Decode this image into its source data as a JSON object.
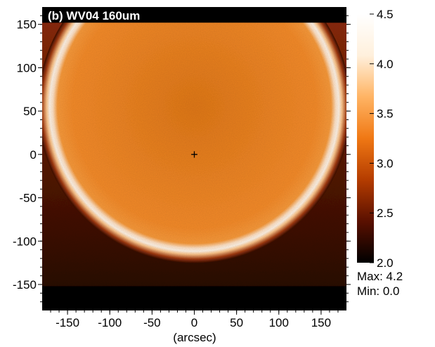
{
  "chart_data": {
    "type": "heatmap",
    "title": "(b) WV04 160um",
    "xlabel": "(arcsec)",
    "ylabel": "",
    "xlim": [
      -180,
      180
    ],
    "ylim": [
      -180,
      170
    ],
    "x_ticks": [
      -150,
      -100,
      -50,
      0,
      50,
      100,
      150
    ],
    "y_ticks": [
      150,
      100,
      50,
      0,
      -50,
      -100,
      -150
    ],
    "colorbar": {
      "range": [
        2.0,
        4.5
      ],
      "ticks": [
        "4.5",
        "4.0",
        "3.5",
        "3.0",
        "2.5",
        "2.0"
      ],
      "colormap": [
        "#000000",
        "#5a1000",
        "#b43c00",
        "#f07814",
        "#ffb464",
        "#fff0dc",
        "#ffffff"
      ]
    },
    "stats": {
      "max": "Max: 4.2",
      "min": "Min: 0.0"
    },
    "features": {
      "center_marker": {
        "x": 0,
        "y": 0,
        "symbol": "+"
      },
      "limb_ring_center": {
        "x": 0,
        "y": 55
      },
      "limb_ring_radius_arcsec": 185,
      "data_extent_y": [
        -152,
        152
      ],
      "disk_level": 3.8,
      "ring_level": 4.4,
      "background_level": 2.6
    }
  }
}
